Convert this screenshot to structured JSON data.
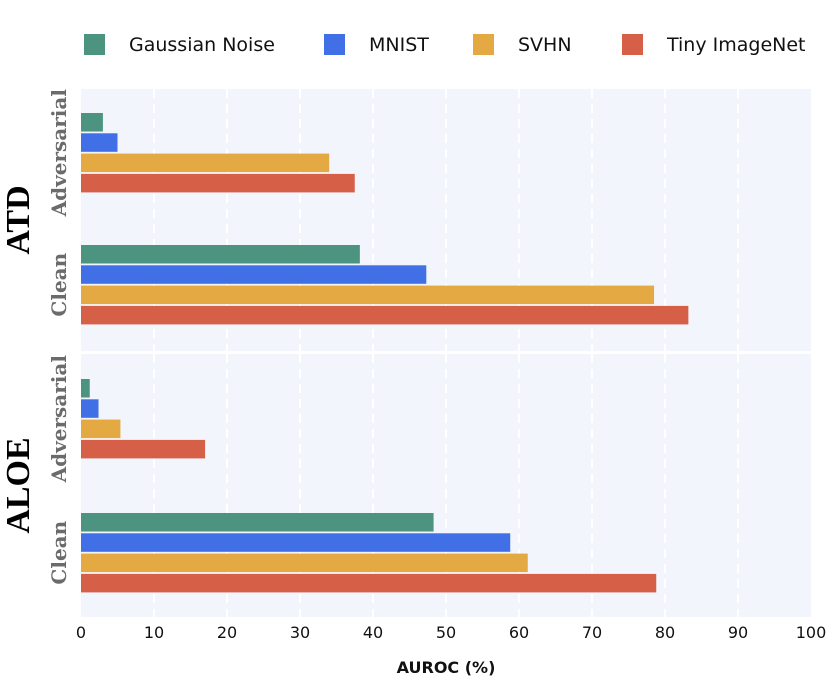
{
  "chart_data": {
    "type": "bar",
    "orientation": "horizontal",
    "xlabel": "AUROC (%)",
    "xlim": [
      0,
      100
    ],
    "xticks": [
      0,
      10,
      20,
      30,
      40,
      50,
      60,
      70,
      80,
      90,
      100
    ],
    "grid": true,
    "legend_position": "top",
    "series": [
      {
        "name": "Gaussian Noise",
        "color": "#4c9480"
      },
      {
        "name": "MNIST",
        "color": "#4170e6"
      },
      {
        "name": "SVHN",
        "color": "#e4a942"
      },
      {
        "name": "Tiny ImageNet",
        "color": "#d65f48"
      }
    ],
    "panels": [
      {
        "model": "ATD",
        "groups": [
          {
            "label": "Adversarial",
            "values": [
              3.0,
              5.0,
              34.0,
              37.5
            ]
          },
          {
            "label": "Clean",
            "values": [
              38.2,
              47.3,
              78.5,
              83.2
            ]
          }
        ]
      },
      {
        "model": "ALOE",
        "groups": [
          {
            "label": "Adversarial",
            "values": [
              1.2,
              2.4,
              5.4,
              17.0
            ]
          },
          {
            "label": "Clean",
            "values": [
              48.3,
              58.8,
              61.2,
              78.8
            ]
          }
        ]
      }
    ]
  }
}
